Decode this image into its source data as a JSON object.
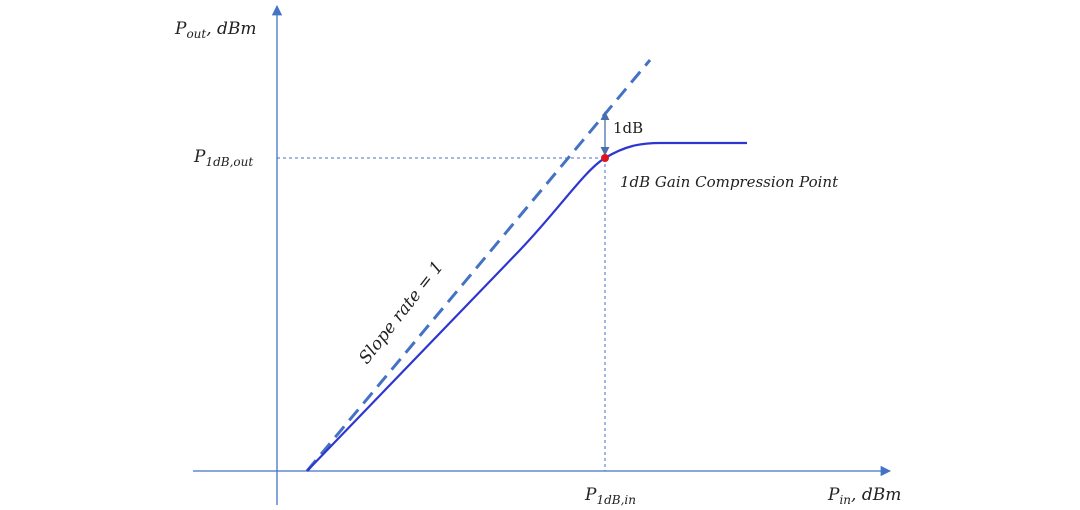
{
  "y_axis_label": {
    "base": "P",
    "sub": "out",
    "suffix": ", dBm"
  },
  "x_axis_label": {
    "base": "P",
    "sub": "in",
    "suffix": ", dBm"
  },
  "p1db_out_label": {
    "base": "P",
    "sub": "1dB,out"
  },
  "p1db_in_label": {
    "base": "P",
    "sub": "1dB,in"
  },
  "delta_label": "1dB",
  "point_label": "1dB Gain Compression Point",
  "slope_label": "Slope rate = 1"
}
